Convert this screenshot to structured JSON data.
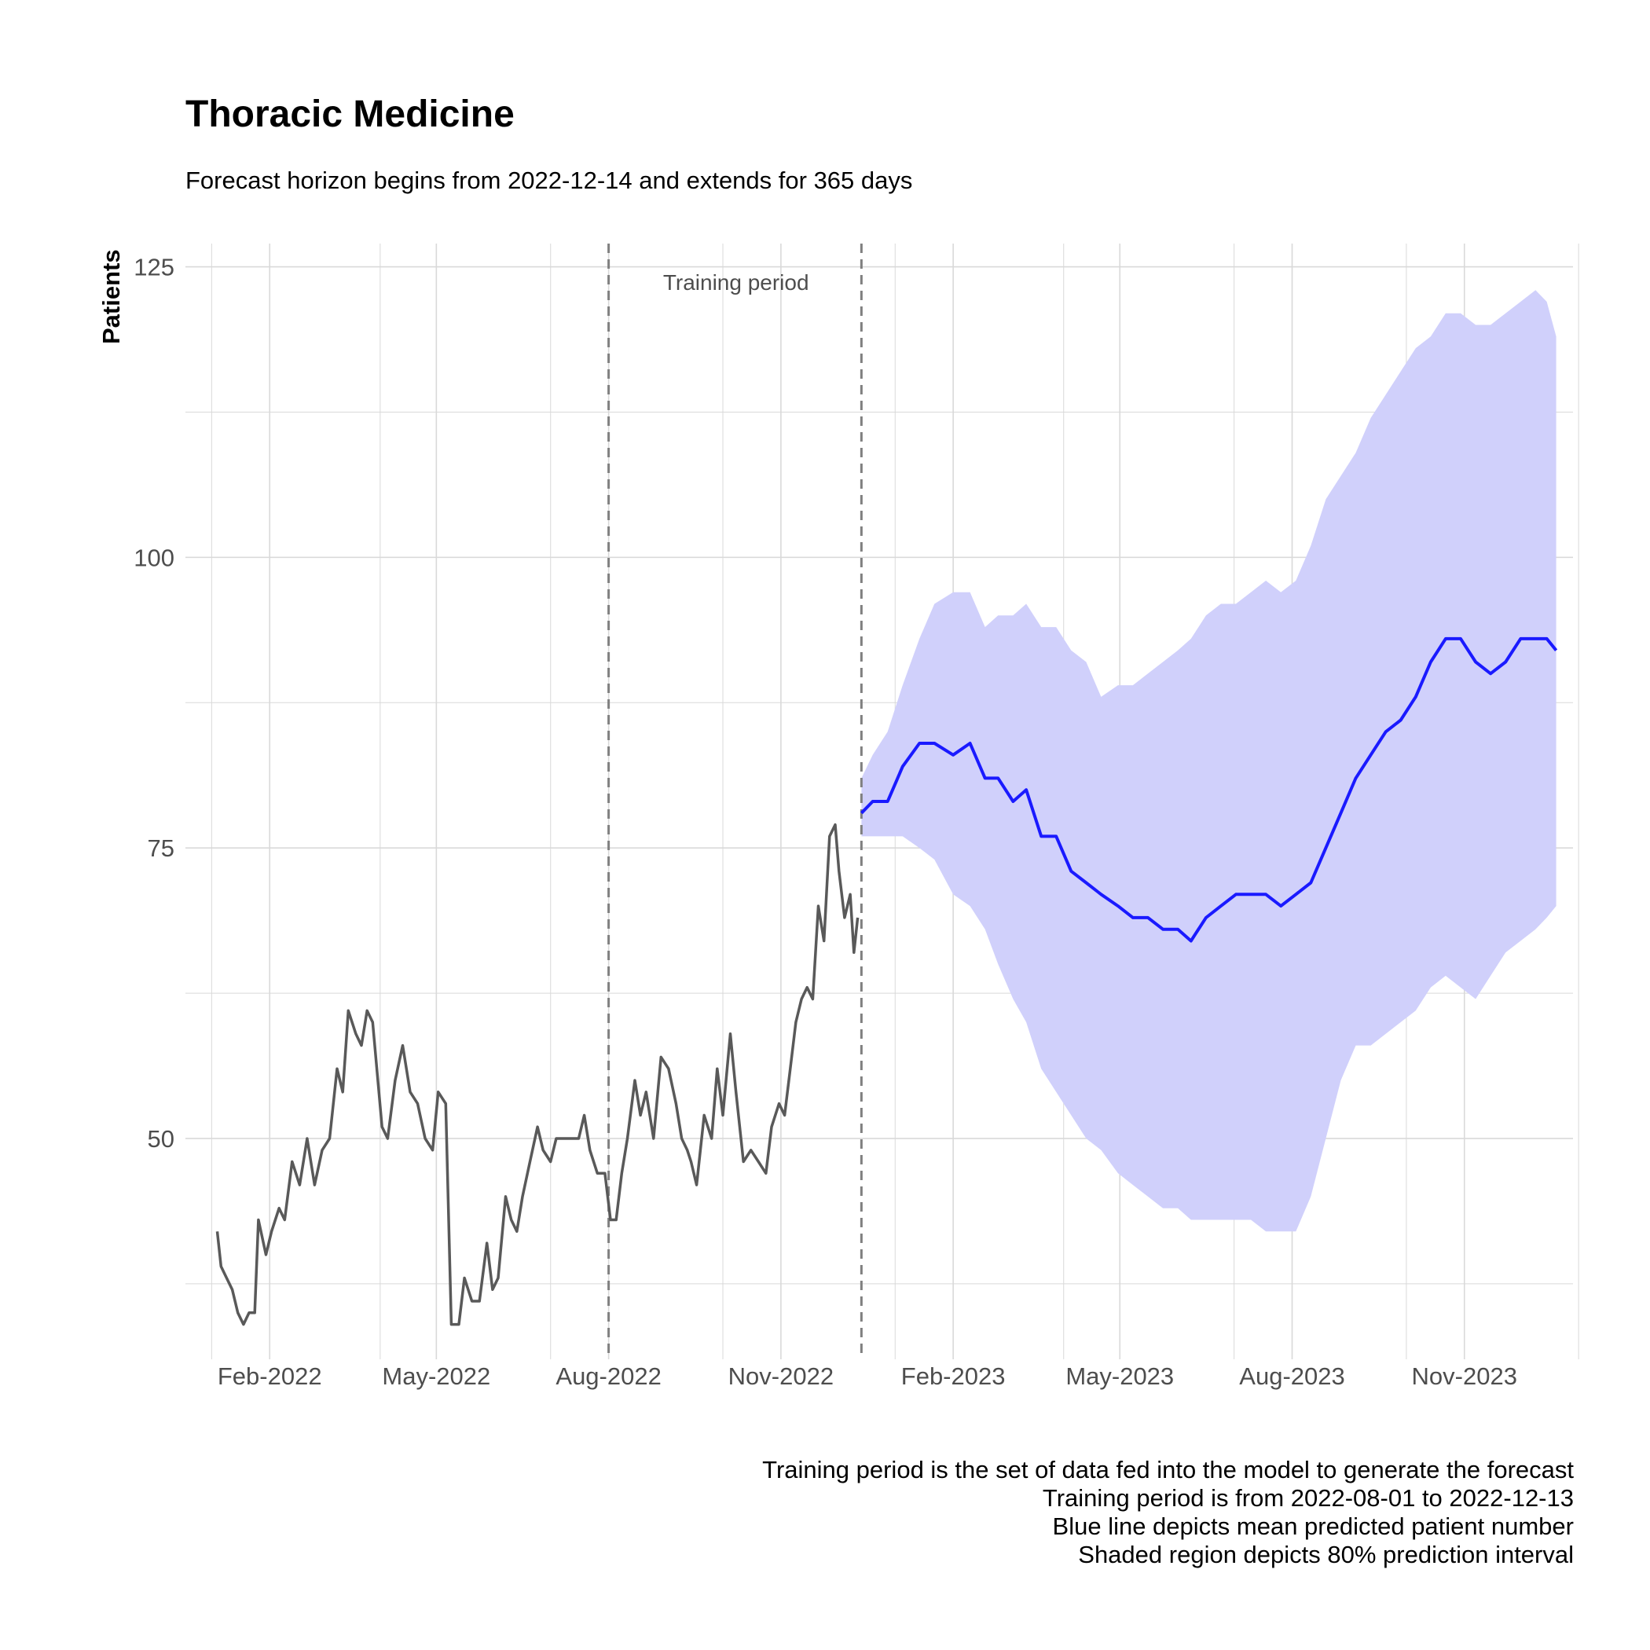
{
  "title": "Thoracic Medicine",
  "subtitle": "Forecast horizon begins from 2022-12-14 and extends for 365 days",
  "caption": [
    "Training period is the set of data fed into the model to generate the forecast",
    "Training period is from 2022-08-01 to 2022-12-13",
    "Blue line depicts mean predicted patient number",
    "Shaded region depicts 80% prediction interval"
  ],
  "chart_data": {
    "type": "line",
    "title": "Thoracic Medicine",
    "subtitle": "Forecast horizon begins from 2022-12-14 and extends for 365 days",
    "xlabel": "",
    "ylabel": "Patients",
    "x_scale": "date",
    "xlim": [
      "2021-12-18",
      "2023-12-29"
    ],
    "ylim": [
      31,
      127
    ],
    "x_ticks": [
      {
        "date": "2022-02-01",
        "label": "Feb-2022"
      },
      {
        "date": "2022-05-01",
        "label": "May-2022"
      },
      {
        "date": "2022-08-01",
        "label": "Aug-2022"
      },
      {
        "date": "2022-11-01",
        "label": "Nov-2022"
      },
      {
        "date": "2023-02-01",
        "label": "Feb-2023"
      },
      {
        "date": "2023-05-01",
        "label": "May-2023"
      },
      {
        "date": "2023-08-01",
        "label": "Aug-2023"
      },
      {
        "date": "2023-11-01",
        "label": "Nov-2023"
      }
    ],
    "x_minor_ticks": [
      "2022-01-01",
      "2022-04-01",
      "2022-07-01",
      "2022-10-01",
      "2023-01-01",
      "2023-04-01",
      "2023-07-01",
      "2023-10-01",
      "2024-01-01"
    ],
    "y_ticks": [
      50,
      75,
      100,
      125
    ],
    "y_minor_ticks": [
      37.5,
      62.5,
      87.5,
      112.5
    ],
    "grid": true,
    "legend": "none",
    "colors": {
      "observed": "#595959",
      "forecast": "#1a1aff",
      "interval": "#d0d0fb",
      "grid": "#d9d9d9",
      "vline": "#808080"
    },
    "annotations": [
      {
        "text": "Training period",
        "x": "2022-10-08",
        "y": 123
      }
    ],
    "vlines": [
      {
        "date": "2022-08-01",
        "style": "dashed"
      },
      {
        "date": "2022-12-14",
        "style": "dashed"
      }
    ],
    "series": [
      {
        "name": "Observed",
        "style": "line",
        "points": [
          [
            "2022-01-04",
            42
          ],
          [
            "2022-01-06",
            39
          ],
          [
            "2022-01-09",
            38
          ],
          [
            "2022-01-12",
            37
          ],
          [
            "2022-01-15",
            35
          ],
          [
            "2022-01-18",
            34
          ],
          [
            "2022-01-21",
            35
          ],
          [
            "2022-01-24",
            35
          ],
          [
            "2022-01-26",
            43
          ],
          [
            "2022-01-30",
            40
          ],
          [
            "2022-02-02",
            42
          ],
          [
            "2022-02-06",
            44
          ],
          [
            "2022-02-09",
            43
          ],
          [
            "2022-02-13",
            48
          ],
          [
            "2022-02-17",
            46
          ],
          [
            "2022-02-21",
            50
          ],
          [
            "2022-02-25",
            46
          ],
          [
            "2022-03-01",
            49
          ],
          [
            "2022-03-05",
            50
          ],
          [
            "2022-03-09",
            56
          ],
          [
            "2022-03-12",
            54
          ],
          [
            "2022-03-15",
            61
          ],
          [
            "2022-03-19",
            59
          ],
          [
            "2022-03-22",
            58
          ],
          [
            "2022-03-25",
            61
          ],
          [
            "2022-03-28",
            60
          ],
          [
            "2022-04-02",
            51
          ],
          [
            "2022-04-05",
            50
          ],
          [
            "2022-04-09",
            55
          ],
          [
            "2022-04-13",
            58
          ],
          [
            "2022-04-17",
            54
          ],
          [
            "2022-04-21",
            53
          ],
          [
            "2022-04-25",
            50
          ],
          [
            "2022-04-29",
            49
          ],
          [
            "2022-05-02",
            54
          ],
          [
            "2022-05-06",
            53
          ],
          [
            "2022-05-09",
            34
          ],
          [
            "2022-05-13",
            34
          ],
          [
            "2022-05-16",
            38
          ],
          [
            "2022-05-20",
            36
          ],
          [
            "2022-05-24",
            36
          ],
          [
            "2022-05-28",
            41
          ],
          [
            "2022-05-31",
            37
          ],
          [
            "2022-06-03",
            38
          ],
          [
            "2022-06-07",
            45
          ],
          [
            "2022-06-10",
            43
          ],
          [
            "2022-06-13",
            42
          ],
          [
            "2022-06-16",
            45
          ],
          [
            "2022-06-20",
            48
          ],
          [
            "2022-06-24",
            51
          ],
          [
            "2022-06-27",
            49
          ],
          [
            "2022-07-01",
            48
          ],
          [
            "2022-07-04",
            50
          ],
          [
            "2022-07-08",
            50
          ],
          [
            "2022-07-12",
            50
          ],
          [
            "2022-07-16",
            50
          ],
          [
            "2022-07-19",
            52
          ],
          [
            "2022-07-22",
            49
          ],
          [
            "2022-07-26",
            47
          ],
          [
            "2022-07-30",
            47
          ],
          [
            "2022-08-02",
            43
          ],
          [
            "2022-08-05",
            43
          ],
          [
            "2022-08-08",
            47
          ],
          [
            "2022-08-11",
            50
          ],
          [
            "2022-08-15",
            55
          ],
          [
            "2022-08-18",
            52
          ],
          [
            "2022-08-21",
            54
          ],
          [
            "2022-08-25",
            50
          ],
          [
            "2022-08-29",
            57
          ],
          [
            "2022-09-02",
            56
          ],
          [
            "2022-09-06",
            53
          ],
          [
            "2022-09-09",
            50
          ],
          [
            "2022-09-12",
            49
          ],
          [
            "2022-09-14",
            48
          ],
          [
            "2022-09-17",
            46
          ],
          [
            "2022-09-21",
            52
          ],
          [
            "2022-09-25",
            50
          ],
          [
            "2022-09-28",
            56
          ],
          [
            "2022-10-01",
            52
          ],
          [
            "2022-10-05",
            59
          ],
          [
            "2022-10-08",
            54
          ],
          [
            "2022-10-12",
            48
          ],
          [
            "2022-10-16",
            49
          ],
          [
            "2022-10-20",
            48
          ],
          [
            "2022-10-24",
            47
          ],
          [
            "2022-10-27",
            51
          ],
          [
            "2022-10-31",
            53
          ],
          [
            "2022-11-03",
            52
          ],
          [
            "2022-11-06",
            56
          ],
          [
            "2022-11-09",
            60
          ],
          [
            "2022-11-12",
            62
          ],
          [
            "2022-11-15",
            63
          ],
          [
            "2022-11-18",
            62
          ],
          [
            "2022-11-21",
            70
          ],
          [
            "2022-11-24",
            67
          ],
          [
            "2022-11-27",
            76
          ],
          [
            "2022-11-30",
            77
          ],
          [
            "2022-12-02",
            73
          ],
          [
            "2022-12-05",
            69
          ],
          [
            "2022-12-08",
            71
          ],
          [
            "2022-12-10",
            66
          ],
          [
            "2022-12-12",
            69
          ]
        ]
      },
      {
        "name": "Forecast mean",
        "style": "line",
        "points": [
          [
            "2022-12-14",
            78
          ],
          [
            "2022-12-20",
            79
          ],
          [
            "2022-12-28",
            79
          ],
          [
            "2023-01-05",
            82
          ],
          [
            "2023-01-14",
            84
          ],
          [
            "2023-01-22",
            84
          ],
          [
            "2023-02-01",
            83
          ],
          [
            "2023-02-10",
            84
          ],
          [
            "2023-02-18",
            81
          ],
          [
            "2023-02-25",
            81
          ],
          [
            "2023-03-05",
            79
          ],
          [
            "2023-03-12",
            80
          ],
          [
            "2023-03-20",
            76
          ],
          [
            "2023-03-28",
            76
          ],
          [
            "2023-04-05",
            73
          ],
          [
            "2023-04-13",
            72
          ],
          [
            "2023-04-21",
            71
          ],
          [
            "2023-04-30",
            70
          ],
          [
            "2023-05-08",
            69
          ],
          [
            "2023-05-16",
            69
          ],
          [
            "2023-05-24",
            68
          ],
          [
            "2023-06-01",
            68
          ],
          [
            "2023-06-08",
            67
          ],
          [
            "2023-06-16",
            69
          ],
          [
            "2023-06-24",
            70
          ],
          [
            "2023-07-02",
            71
          ],
          [
            "2023-07-10",
            71
          ],
          [
            "2023-07-18",
            71
          ],
          [
            "2023-07-26",
            70
          ],
          [
            "2023-08-03",
            71
          ],
          [
            "2023-08-11",
            72
          ],
          [
            "2023-08-19",
            75
          ],
          [
            "2023-08-27",
            78
          ],
          [
            "2023-09-04",
            81
          ],
          [
            "2023-09-12",
            83
          ],
          [
            "2023-09-20",
            85
          ],
          [
            "2023-09-28",
            86
          ],
          [
            "2023-10-06",
            88
          ],
          [
            "2023-10-14",
            91
          ],
          [
            "2023-10-22",
            93
          ],
          [
            "2023-10-30",
            93
          ],
          [
            "2023-11-07",
            91
          ],
          [
            "2023-11-15",
            90
          ],
          [
            "2023-11-23",
            91
          ],
          [
            "2023-12-01",
            93
          ],
          [
            "2023-12-09",
            93
          ],
          [
            "2023-12-15",
            93
          ],
          [
            "2023-12-20",
            92
          ]
        ]
      },
      {
        "name": "80% prediction interval",
        "style": "band",
        "points": [
          [
            "2022-12-14",
            76,
            81
          ],
          [
            "2022-12-20",
            76,
            83
          ],
          [
            "2022-12-28",
            76,
            85
          ],
          [
            "2023-01-05",
            76,
            89
          ],
          [
            "2023-01-14",
            75,
            93
          ],
          [
            "2023-01-22",
            74,
            96
          ],
          [
            "2023-02-01",
            71,
            97
          ],
          [
            "2023-02-10",
            70,
            97
          ],
          [
            "2023-02-18",
            68,
            94
          ],
          [
            "2023-02-25",
            65,
            95
          ],
          [
            "2023-03-05",
            62,
            95
          ],
          [
            "2023-03-12",
            60,
            96
          ],
          [
            "2023-03-20",
            56,
            94
          ],
          [
            "2023-03-28",
            54,
            94
          ],
          [
            "2023-04-05",
            52,
            92
          ],
          [
            "2023-04-13",
            50,
            91
          ],
          [
            "2023-04-21",
            49,
            88
          ],
          [
            "2023-04-30",
            47,
            89
          ],
          [
            "2023-05-08",
            46,
            89
          ],
          [
            "2023-05-16",
            45,
            90
          ],
          [
            "2023-05-24",
            44,
            91
          ],
          [
            "2023-06-01",
            44,
            92
          ],
          [
            "2023-06-08",
            43,
            93
          ],
          [
            "2023-06-16",
            43,
            95
          ],
          [
            "2023-06-24",
            43,
            96
          ],
          [
            "2023-07-02",
            43,
            96
          ],
          [
            "2023-07-10",
            43,
            97
          ],
          [
            "2023-07-18",
            42,
            98
          ],
          [
            "2023-07-26",
            42,
            97
          ],
          [
            "2023-08-03",
            42,
            98
          ],
          [
            "2023-08-11",
            45,
            101
          ],
          [
            "2023-08-19",
            50,
            105
          ],
          [
            "2023-08-27",
            55,
            107
          ],
          [
            "2023-09-04",
            58,
            109
          ],
          [
            "2023-09-12",
            58,
            112
          ],
          [
            "2023-09-20",
            59,
            114
          ],
          [
            "2023-09-28",
            60,
            116
          ],
          [
            "2023-10-06",
            61,
            118
          ],
          [
            "2023-10-14",
            63,
            119
          ],
          [
            "2023-10-22",
            64,
            121
          ],
          [
            "2023-10-30",
            63,
            121
          ],
          [
            "2023-11-07",
            62,
            120
          ],
          [
            "2023-11-15",
            64,
            120
          ],
          [
            "2023-11-23",
            66,
            121
          ],
          [
            "2023-12-01",
            67,
            122
          ],
          [
            "2023-12-09",
            68,
            123
          ],
          [
            "2023-12-15",
            69,
            122
          ],
          [
            "2023-12-20",
            70,
            119
          ]
        ]
      }
    ]
  }
}
